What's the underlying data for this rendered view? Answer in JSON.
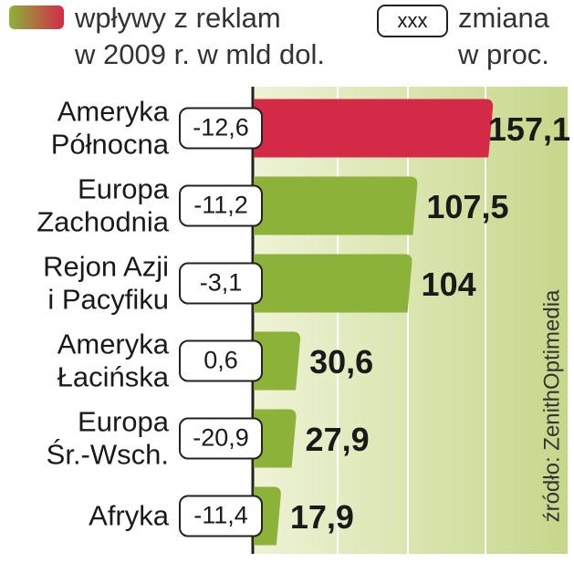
{
  "chart_data": {
    "type": "bar",
    "orientation": "horizontal",
    "legend": {
      "series_label": [
        "wpływy z reklam",
        "w 2009 r. w mld dol."
      ],
      "change_sample": "xxx",
      "change_label": [
        "zmiana",
        "w proc."
      ]
    },
    "categories": [
      [
        "Ameryka",
        "Północna"
      ],
      [
        "Europa",
        "Zachodnia"
      ],
      [
        "Rejon Azji",
        "i Pacyfiku"
      ],
      [
        "Ameryka",
        "Łacińska"
      ],
      [
        "Europa",
        "Śr.-Wsch."
      ],
      [
        "Afryka"
      ]
    ],
    "values": [
      157.1,
      107.5,
      104,
      30.6,
      27.9,
      17.9
    ],
    "value_labels": [
      "157,1",
      "107,5",
      "104",
      "30,6",
      "27,9",
      "17,9"
    ],
    "change": [
      -12.6,
      -11.2,
      -3.1,
      0.6,
      -20.9,
      -11.4
    ],
    "change_labels": [
      "-12,6",
      "-11,2",
      "-3,1",
      "0,6",
      "-20,9",
      "-11,4"
    ],
    "colors": [
      "#d42a48",
      "#8cb23a",
      "#8cb23a",
      "#8cb23a",
      "#8cb23a",
      "#8cb23a"
    ],
    "xlim": [
      0,
      160
    ],
    "source": "źródło: ZenithOptimedia"
  }
}
